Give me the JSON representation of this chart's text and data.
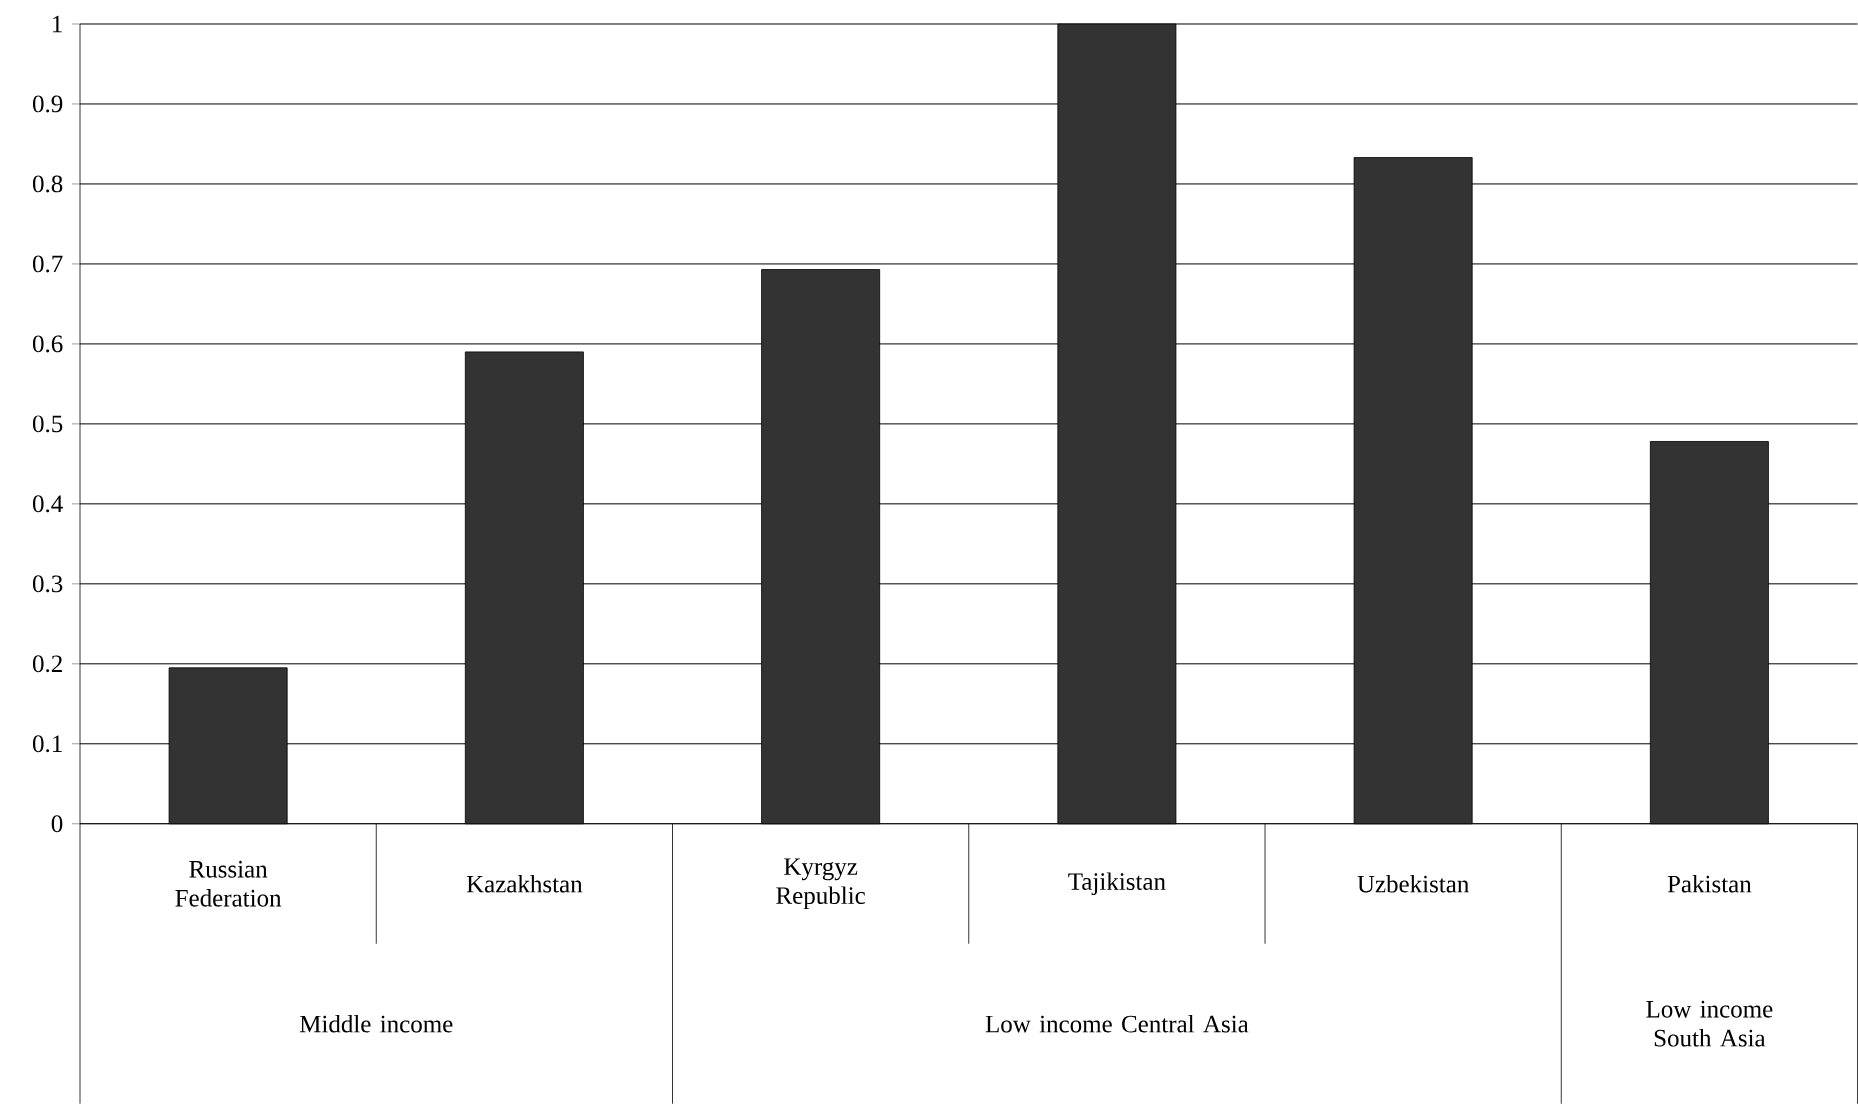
{
  "chart_data": {
    "type": "bar",
    "categories": [
      "Russian Federation",
      "Kazakhstan",
      "Kyrgyz Republic",
      "Tajikistan",
      "Uzbekistan",
      "Pakistan"
    ],
    "values": [
      0.195,
      0.59,
      0.693,
      1.0,
      0.833,
      0.478
    ],
    "color": "#333333",
    "ylim": [
      0,
      1
    ],
    "yticks": [
      0,
      0.1,
      0.2,
      0.3,
      0.4,
      0.5,
      0.6,
      0.7,
      0.8,
      0.9,
      1
    ],
    "grid": "y",
    "annotations": [
      "Middle income",
      "Low income Central Asia",
      "Low income South Asia"
    ]
  }
}
